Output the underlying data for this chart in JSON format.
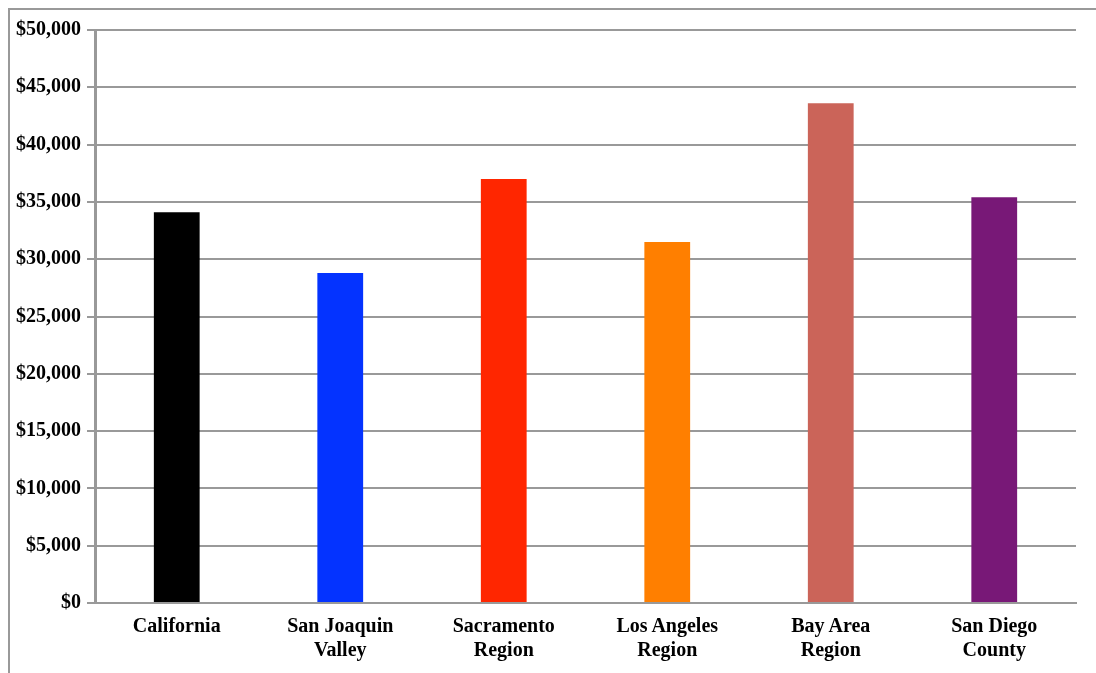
{
  "chart_data": {
    "type": "bar",
    "categories": [
      "California",
      "San Joaquin Valley",
      "Sacramento Region",
      "Los Angeles Region",
      "Bay Area Region",
      "San Diego County"
    ],
    "values": [
      34100,
      28800,
      37000,
      31500,
      43600,
      35400
    ],
    "colors": [
      "#000000",
      "#0433ff",
      "#ff2600",
      "#ff7f00",
      "#cb6459",
      "#781877"
    ],
    "ylim": [
      0,
      50000
    ],
    "yticks": [
      {
        "value": 0,
        "label": "$0"
      },
      {
        "value": 5000,
        "label": "$5,000"
      },
      {
        "value": 10000,
        "label": "$10,000"
      },
      {
        "value": 15000,
        "label": "$15,000"
      },
      {
        "value": 20000,
        "label": "$20,000"
      },
      {
        "value": 25000,
        "label": "$25,000"
      },
      {
        "value": 30000,
        "label": "$30,000"
      },
      {
        "value": 35000,
        "label": "$35,000"
      },
      {
        "value": 40000,
        "label": "$40,000"
      },
      {
        "value": 45000,
        "label": "$45,000"
      },
      {
        "value": 50000,
        "label": "$50,000"
      }
    ],
    "grid": "y",
    "legend": false
  }
}
